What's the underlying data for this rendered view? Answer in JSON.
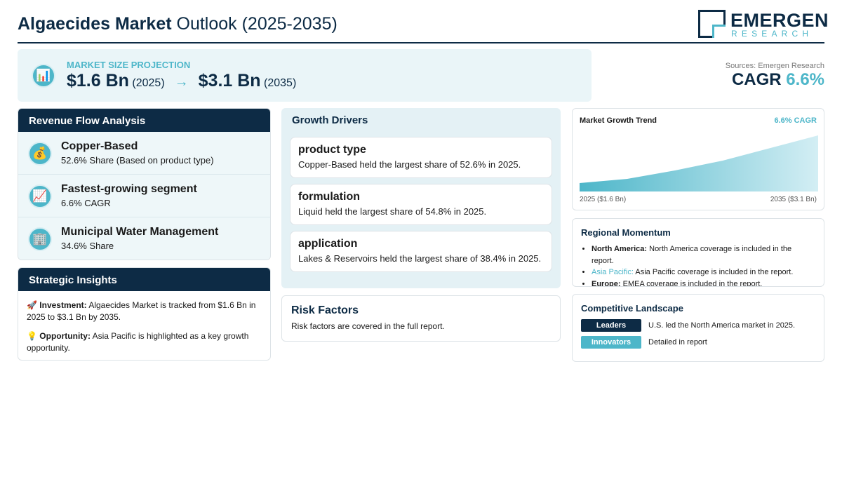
{
  "header": {
    "title_bold": "Algaecides Market",
    "title_rest": "Outlook (2025-2035)",
    "logo_top": "EMERGEN",
    "logo_bottom": "RESEARCH"
  },
  "projection": {
    "icon": "📊",
    "label": "MARKET SIZE PROJECTION",
    "start_value": "$1.6 Bn",
    "start_year": "(2025)",
    "arrow": "→",
    "end_value": "$3.1 Bn",
    "end_year": "(2035)"
  },
  "cagr": {
    "source": "Sources: Emergen Research",
    "label": "CAGR",
    "value": "6.6%"
  },
  "revenue_flow": {
    "title": "Revenue Flow Analysis",
    "items": [
      {
        "icon": "💰",
        "title": "Copper-Based",
        "detail": "52.6% Share (Based on product type)"
      },
      {
        "icon": "📈",
        "title": "Fastest-growing segment",
        "detail": "6.6% CAGR"
      },
      {
        "icon": "🏢",
        "title": "Municipal Water Management",
        "detail": "34.6% Share"
      }
    ]
  },
  "strategic_insights": {
    "title": "Strategic Insights",
    "items": [
      {
        "icon": "🚀",
        "label": "Investment:",
        "text": "Algaecides Market is tracked from $1.6 Bn in 2025 to $3.1 Bn by 2035."
      },
      {
        "icon": "💡",
        "label": "Opportunity:",
        "text": "Asia Pacific is highlighted as a key growth opportunity."
      }
    ]
  },
  "growth_drivers": {
    "title": "Growth Drivers",
    "items": [
      {
        "title": "product type",
        "text": "Copper-Based held the largest share of 52.6% in 2025."
      },
      {
        "title": "formulation",
        "text": "Liquid held the largest share of 54.8% in 2025."
      },
      {
        "title": "application",
        "text": "Lakes & Reservoirs held the largest share of 38.4% in 2025."
      }
    ]
  },
  "risk_factors": {
    "title": "Risk Factors",
    "text": "Risk factors are covered in the full report."
  },
  "growth_trend": {
    "title": "Market Growth Trend",
    "badge": "6.6% CAGR",
    "start_label": "2025 ($1.6 Bn)",
    "end_label": "2035 ($3.1 Bn)"
  },
  "regional_momentum": {
    "title": "Regional Momentum",
    "items": [
      {
        "region": "North America:",
        "text": "North America coverage is included in the report."
      },
      {
        "region": "Asia Pacific:",
        "text": "Asia Pacific coverage is included in the report."
      },
      {
        "region": "Europe:",
        "text": "EMEA coverage is included in the report."
      }
    ]
  },
  "competitive_landscape": {
    "title": "Competitive Landscape",
    "rows": [
      {
        "tag": "Leaders",
        "text": "U.S. led the North America market in 2025."
      },
      {
        "tag": "Innovators",
        "text": "Detailed in report"
      }
    ]
  }
}
